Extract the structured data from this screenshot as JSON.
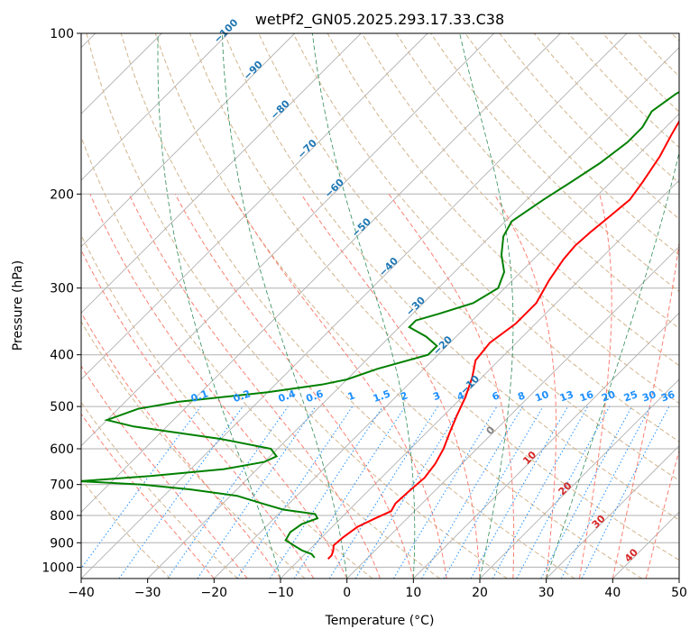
{
  "chart_data": {
    "type": "skew-t",
    "title": "wetPf2_GN05.2025.293.17.33.C38",
    "xlabel": "Temperature (°C)",
    "ylabel": "Pressure (hPa)",
    "xlim": [
      -40,
      50
    ],
    "ylim": [
      1050,
      100
    ],
    "y_scale": "log",
    "grid": true,
    "x_ticks": [
      "−40",
      "−30",
      "−20",
      "−10",
      "0",
      "10",
      "20",
      "30",
      "40",
      "50"
    ],
    "x_tick_values": [
      -40,
      -30,
      -20,
      -10,
      0,
      10,
      20,
      30,
      40,
      50
    ],
    "y_ticks": [
      "100",
      "200",
      "300",
      "400",
      "500",
      "600",
      "700",
      "800",
      "900",
      "1000"
    ],
    "y_tick_values": [
      100,
      200,
      300,
      400,
      500,
      600,
      700,
      800,
      900,
      1000
    ],
    "colors": {
      "temperature": "#ff0000",
      "dewpoint": "#008000",
      "isotherm_grid": "#b0b0b0",
      "dry_adiabat": "#d2b48c",
      "moist_adiabat": "#fa8072",
      "mixing_ratio": "#1e90ff",
      "wet_bulb_potential_temperature": "#2e8b57",
      "isotherm_label": "#1f77b4",
      "moist_label": "#d62728",
      "zero_label": "#808080"
    },
    "series": [
      {
        "key": "temperature",
        "points": [
          [
            -5.8,
            965
          ],
          [
            -5.8,
            950
          ],
          [
            -6.3,
            930
          ],
          [
            -7.0,
            910
          ],
          [
            -6.8,
            880
          ],
          [
            -6.2,
            840
          ],
          [
            -4.8,
            810
          ],
          [
            -3.5,
            785
          ],
          [
            -4.0,
            760
          ],
          [
            -3.8,
            720
          ],
          [
            -3.5,
            680
          ],
          [
            -4.0,
            640
          ],
          [
            -5.0,
            600
          ],
          [
            -6.5,
            560
          ],
          [
            -8.0,
            520
          ],
          [
            -9.5,
            480
          ],
          [
            -11.5,
            440
          ],
          [
            -13.5,
            410
          ],
          [
            -14.0,
            380
          ],
          [
            -13.0,
            350
          ],
          [
            -13.0,
            320
          ],
          [
            -14.5,
            290
          ],
          [
            -15.5,
            265
          ],
          [
            -15.8,
            250
          ],
          [
            -15.5,
            235
          ],
          [
            -15.0,
            220
          ],
          [
            -14.5,
            205
          ],
          [
            -15.2,
            190
          ],
          [
            -16.5,
            170
          ],
          [
            -18.0,
            155
          ],
          [
            -19.5,
            140
          ],
          [
            -22.5,
            125
          ],
          [
            -26.0,
            113
          ],
          [
            -29.0,
            106
          ],
          [
            -31.5,
            100
          ]
        ]
      },
      {
        "key": "dewpoint",
        "points": [
          [
            -8.0,
            960
          ],
          [
            -9.0,
            945
          ],
          [
            -11.0,
            930
          ],
          [
            -13.0,
            910
          ],
          [
            -15.0,
            890
          ],
          [
            -15.5,
            860
          ],
          [
            -15.0,
            830
          ],
          [
            -13.5,
            810
          ],
          [
            -14.5,
            795
          ],
          [
            -20.0,
            780
          ],
          [
            -24.0,
            760
          ],
          [
            -29.0,
            735
          ],
          [
            -37.0,
            715
          ],
          [
            -45.0,
            700
          ],
          [
            -55.0,
            690
          ],
          [
            -45.0,
            675
          ],
          [
            -35.0,
            655
          ],
          [
            -30.0,
            635
          ],
          [
            -29.0,
            620
          ],
          [
            -31.0,
            600
          ],
          [
            -40.0,
            575
          ],
          [
            -55.0,
            545
          ],
          [
            -60.0,
            530
          ],
          [
            -57.0,
            505
          ],
          [
            -52.0,
            490
          ],
          [
            -40.0,
            470
          ],
          [
            -33.0,
            455
          ],
          [
            -30.0,
            445
          ],
          [
            -27.0,
            425
          ],
          [
            -21.5,
            400
          ],
          [
            -21.5,
            385
          ],
          [
            -24.5,
            370
          ],
          [
            -28.5,
            355
          ],
          [
            -28.5,
            345
          ],
          [
            -26.0,
            335
          ],
          [
            -22.5,
            320
          ],
          [
            -21.0,
            300
          ],
          [
            -22.5,
            280
          ],
          [
            -25.5,
            260
          ],
          [
            -28.0,
            240
          ],
          [
            -29.0,
            225
          ],
          [
            -27.5,
            205
          ],
          [
            -26.0,
            190
          ],
          [
            -24.5,
            175
          ],
          [
            -23.5,
            160
          ],
          [
            -23.5,
            150
          ],
          [
            -24.5,
            140
          ],
          [
            -23.5,
            130
          ],
          [
            -22.0,
            122
          ],
          [
            -20.5,
            115
          ],
          [
            -19.5,
            110
          ],
          [
            -18.5,
            105
          ],
          [
            -18.0,
            100
          ]
        ]
      }
    ],
    "isotherm_labels": [
      "−100",
      "−90",
      "−80",
      "−70",
      "−60",
      "−50",
      "−40",
      "−30",
      "−20",
      "−10",
      "0",
      "10",
      "20",
      "30",
      "40"
    ],
    "isotherm_label_values": [
      -100,
      -90,
      -80,
      -70,
      -60,
      -50,
      -40,
      -30,
      -20,
      -10,
      0,
      10,
      20,
      30,
      40
    ],
    "mixing_ratio_labels": [
      "0.1",
      "0.2",
      "0.4",
      "0.6",
      "1",
      "1.5",
      "2",
      "3",
      "4",
      "6",
      "8",
      "10",
      "13",
      "16",
      "20",
      "25",
      "30",
      "36"
    ],
    "mixing_ratio_values": [
      0.1,
      0.2,
      0.4,
      0.6,
      1,
      1.5,
      2,
      3,
      4,
      6,
      8,
      10,
      13,
      16,
      20,
      25,
      30,
      36
    ]
  }
}
